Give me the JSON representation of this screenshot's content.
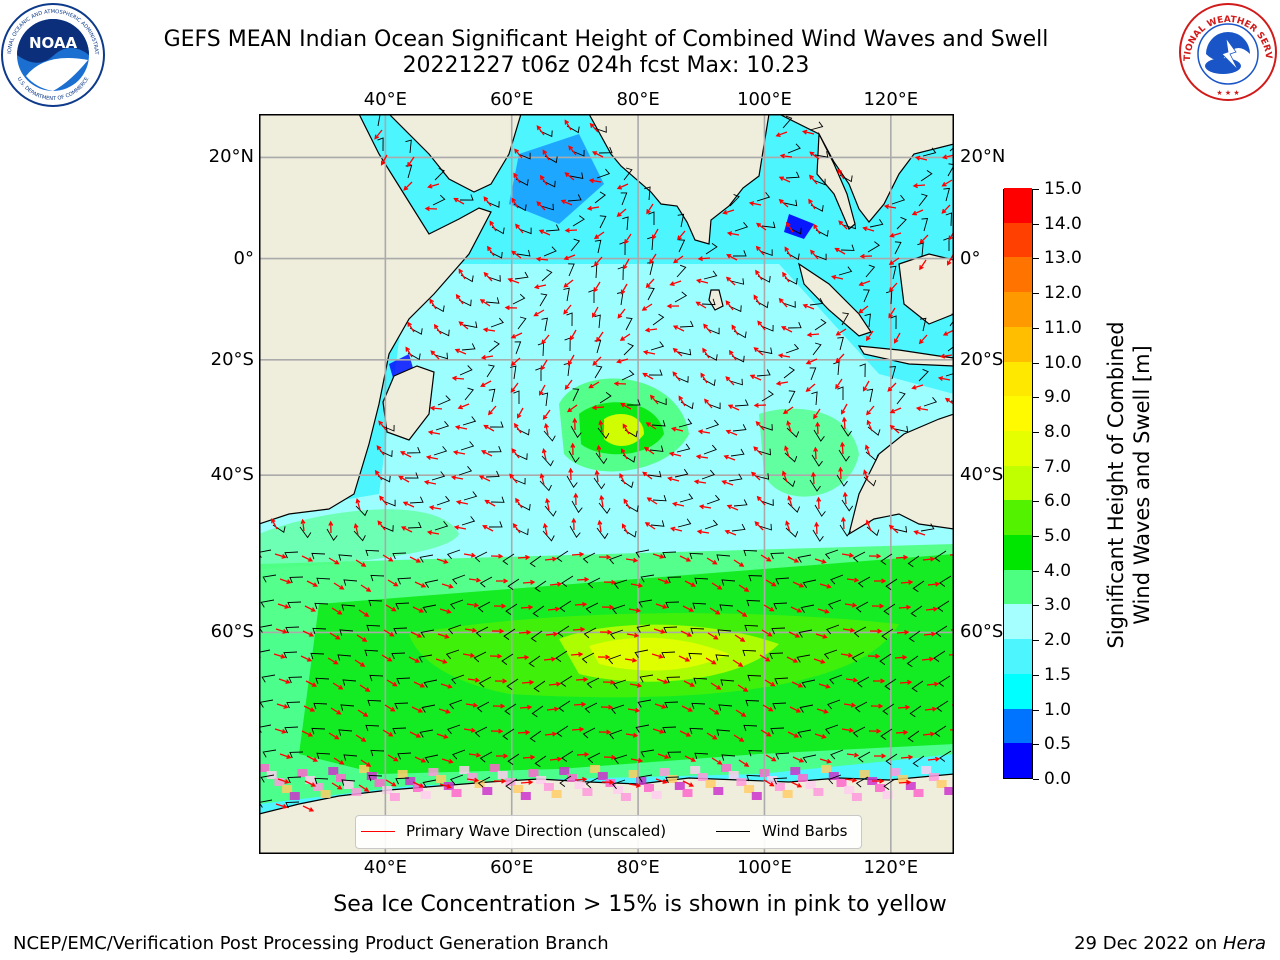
{
  "title_line1": "GEFS MEAN Indian Ocean Significant Height of Combined Wind Waves and Swell",
  "title_line2": "20221227 t06z 024h fcst   Max: 10.23",
  "logos": {
    "noaa_text": "NOAA",
    "noaa_ring_top": "NATIONAL OCEANIC AND ATMOSPHERIC ADMINISTRATION",
    "noaa_ring_bottom": "U.S. DEPARTMENT OF COMMERCE",
    "nws_ring": "NATIONAL WEATHER SERVICE"
  },
  "map": {
    "lon_ticks": [
      "40°E",
      "60°E",
      "80°E",
      "100°E",
      "120°E"
    ],
    "lat_ticks": [
      "20°N",
      "0°",
      "20°S",
      "40°S",
      "60°S"
    ],
    "lon_values": [
      40,
      60,
      80,
      100,
      120
    ],
    "lat_values": [
      20,
      0,
      -20,
      -40,
      -60
    ],
    "extent": {
      "lon_min": 20,
      "lon_max": 130,
      "lat_min": -76,
      "lat_max": 28
    },
    "colors": {
      "land": "#efeddc",
      "ice_free_ocean": "#a6ffff",
      "wind_barb": "#000000",
      "wave_arrow": "#ff0000",
      "sea_ice": "#ff66cc"
    }
  },
  "legend": {
    "primary_wave": "Primary Wave Direction (unscaled)",
    "wind_barbs": "Wind Barbs",
    "primary_wave_color": "#ff0000",
    "wind_barbs_color": "#000000"
  },
  "colorbar": {
    "title_line1": "Significant Height of Combined",
    "title_line2": "Wind Waves and Swell [m]",
    "min": 0.0,
    "max": 15.0,
    "labels": [
      "0.0",
      "0.5",
      "1.0",
      "1.5",
      "2.0",
      "3.0",
      "4.0",
      "5.0",
      "6.0",
      "7.0",
      "8.0",
      "9.0",
      "10.0",
      "11.0",
      "12.0",
      "13.0",
      "14.0",
      "15.0"
    ],
    "colors": [
      "#0000ff",
      "#0073ff",
      "#00ffff",
      "#4df5ff",
      "#a6ffff",
      "#4dff80",
      "#00e600",
      "#52f200",
      "#bfff00",
      "#e6ff00",
      "#fffa00",
      "#ffe800",
      "#ffbf00",
      "#ff9900",
      "#ff7300",
      "#ff4000",
      "#ff0000"
    ]
  },
  "sea_ice_note": "Sea Ice Concentration > 15% is shown in pink to yellow",
  "footer_left": "NCEP/EMC/Verification Post Processing Product Generation Branch",
  "footer_right_date": "29 Dec 2022 on ",
  "footer_right_host": "Hera"
}
